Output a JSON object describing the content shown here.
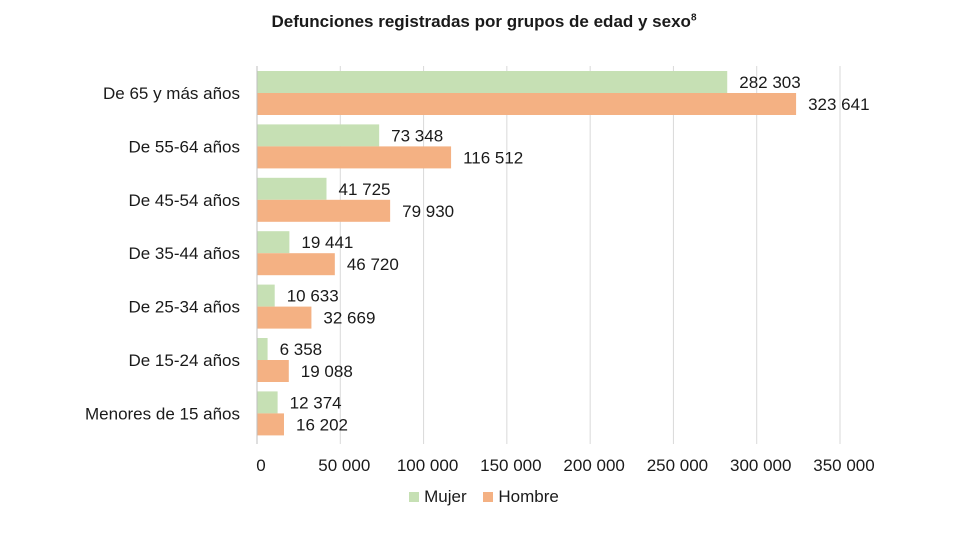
{
  "chart_data": {
    "type": "bar",
    "orientation": "horizontal",
    "title": "Defunciones registradas por grupos de edad y sexo",
    "title_superscript": "8",
    "categories": [
      "De 65 y más años",
      "De 55-64 años",
      "De 45-54 años",
      "De 35-44 años",
      "De 25-34 años",
      "De 15-24 años",
      "Menores de 15 años"
    ],
    "series": [
      {
        "name": "Mujer",
        "color": "#c6e0b4",
        "values": [
          282303,
          73348,
          41725,
          19441,
          10633,
          6358,
          12374
        ],
        "labels": [
          "282 303",
          "73 348",
          "41 725",
          "19 441",
          "10 633",
          "6 358",
          "12 374"
        ]
      },
      {
        "name": "Hombre",
        "color": "#f4b183",
        "values": [
          323641,
          116512,
          79930,
          46720,
          32669,
          19088,
          16202
        ],
        "labels": [
          "323 641",
          "116 512",
          "79 930",
          "46 720",
          "32 669",
          "19 088",
          "16 202"
        ]
      }
    ],
    "xlim": [
      0,
      350000
    ],
    "xticks": [
      "0",
      "50 000",
      "100 000",
      "150 000",
      "200 000",
      "250 000",
      "300 000",
      "350 000"
    ],
    "xtick_values": [
      0,
      50000,
      100000,
      150000,
      200000,
      250000,
      300000,
      350000
    ],
    "grid": "vertical",
    "legend_position": "bottom"
  }
}
